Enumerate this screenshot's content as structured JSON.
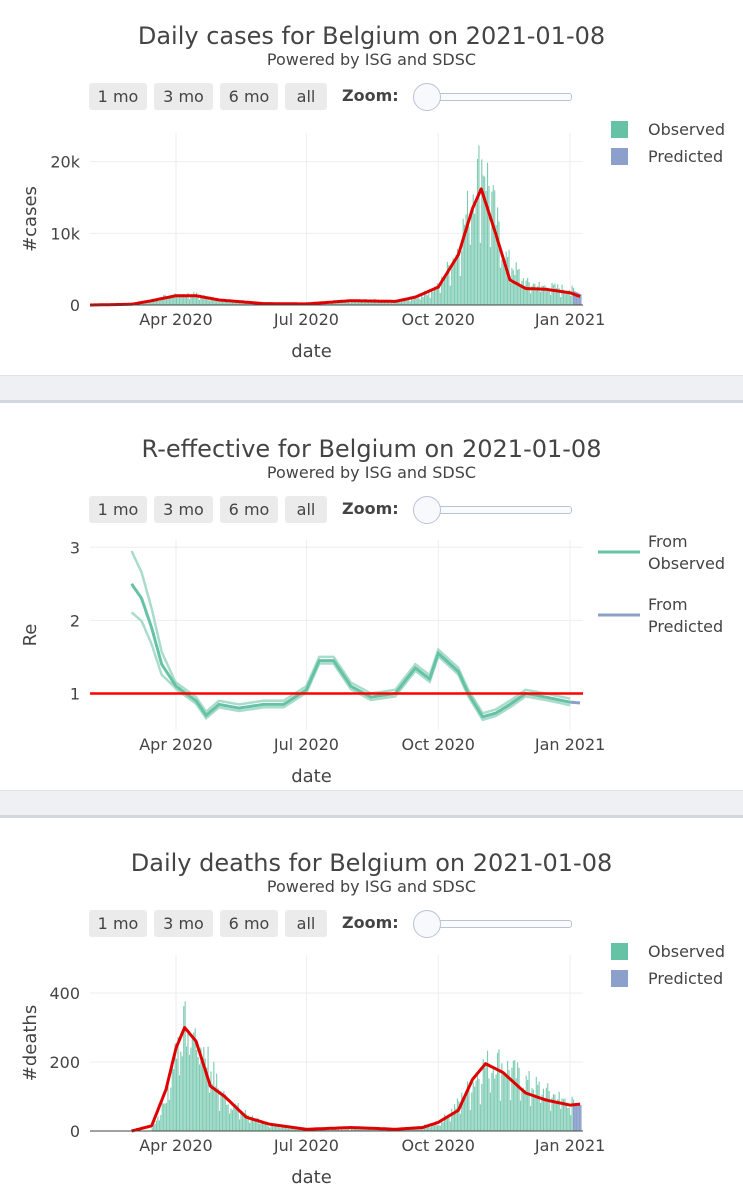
{
  "controls": {
    "buttons": [
      "1 mo",
      "3 mo",
      "6 mo",
      "all"
    ],
    "zoom_label": "Zoom:"
  },
  "x_ticks": [
    "Apr 2020",
    "Jul 2020",
    "Oct 2020",
    "Jan 2021"
  ],
  "chart_data": [
    {
      "type": "bar",
      "title": "Daily cases for Belgium on 2021-01-08",
      "subtitle": "Powered by ISG and SDSC",
      "xlabel": "date",
      "ylabel": "#cases",
      "ylim": [
        0,
        24000
      ],
      "y_ticks": [
        "0",
        "10k",
        "20k"
      ],
      "y_tick_values": [
        0,
        10000,
        20000
      ],
      "legend": {
        "placement": "top-right",
        "items": [
          "Observed",
          "Predicted"
        ]
      },
      "colors": {
        "observed": "#66c2a5",
        "predicted": "#8da0cb",
        "trend": "#e00000"
      },
      "series": [
        {
          "name": "Observed",
          "x": [
            "2020-03-01",
            "2020-03-15",
            "2020-04-01",
            "2020-04-15",
            "2020-05-01",
            "2020-06-01",
            "2020-07-01",
            "2020-08-01",
            "2020-08-15",
            "2020-09-01",
            "2020-09-15",
            "2020-10-01",
            "2020-10-15",
            "2020-10-25",
            "2020-11-01",
            "2020-11-15",
            "2020-12-01",
            "2020-12-15",
            "2021-01-01",
            "2021-01-08"
          ],
          "values": [
            200,
            700,
            1500,
            1400,
            700,
            200,
            150,
            600,
            700,
            500,
            1000,
            2500,
            8000,
            16000,
            20000,
            7000,
            3000,
            2500,
            2200,
            1500
          ]
        },
        {
          "name": "Trend",
          "x": [
            "2020-02-01",
            "2020-03-01",
            "2020-03-15",
            "2020-04-01",
            "2020-04-15",
            "2020-05-01",
            "2020-06-01",
            "2020-07-01",
            "2020-08-01",
            "2020-09-01",
            "2020-09-15",
            "2020-10-01",
            "2020-10-15",
            "2020-10-25",
            "2020-10-31",
            "2020-11-10",
            "2020-11-20",
            "2020-12-01",
            "2020-12-15",
            "2021-01-01",
            "2021-01-08"
          ],
          "values": [
            0,
            100,
            600,
            1300,
            1300,
            700,
            200,
            150,
            600,
            500,
            1100,
            2500,
            7000,
            13500,
            16200,
            10000,
            3500,
            2300,
            2200,
            1700,
            1200
          ]
        }
      ]
    },
    {
      "type": "line",
      "title": "R-effective for Belgium on 2021-01-08",
      "subtitle": "Powered by ISG and SDSC",
      "xlabel": "date",
      "ylabel": "Re",
      "ylim": [
        0.5,
        3.1
      ],
      "y_ticks": [
        "1",
        "2",
        "3"
      ],
      "y_tick_values": [
        1,
        2,
        3
      ],
      "reference_line": 1,
      "legend": {
        "placement": "top-right",
        "items": [
          [
            "From",
            "Observed"
          ],
          [
            "From",
            "Predicted"
          ]
        ]
      },
      "colors": {
        "observed": "#66c2a5",
        "predicted": "#8da0cb",
        "reference": "#ff0000"
      },
      "series": [
        {
          "name": "From Observed",
          "x": [
            "2020-03-01",
            "2020-03-08",
            "2020-03-15",
            "2020-03-22",
            "2020-04-01",
            "2020-04-08",
            "2020-04-15",
            "2020-04-22",
            "2020-05-01",
            "2020-05-15",
            "2020-06-01",
            "2020-06-15",
            "2020-07-01",
            "2020-07-10",
            "2020-07-20",
            "2020-08-01",
            "2020-08-15",
            "2020-09-01",
            "2020-09-15",
            "2020-09-25",
            "2020-10-01",
            "2020-10-15",
            "2020-10-22",
            "2020-11-01",
            "2020-11-10",
            "2020-11-20",
            "2020-12-01",
            "2020-12-15",
            "2021-01-01"
          ],
          "values": [
            2.5,
            2.3,
            1.9,
            1.4,
            1.1,
            1.0,
            0.9,
            0.7,
            0.85,
            0.8,
            0.85,
            0.85,
            1.05,
            1.45,
            1.45,
            1.1,
            0.95,
            1.0,
            1.35,
            1.2,
            1.55,
            1.3,
            1.0,
            0.68,
            0.73,
            0.85,
            1.0,
            0.95,
            0.88
          ]
        },
        {
          "name": "From Predicted",
          "x": [
            "2021-01-01",
            "2021-01-08"
          ],
          "values": [
            0.88,
            0.87
          ]
        }
      ]
    },
    {
      "type": "bar",
      "title": "Daily deaths for Belgium on 2021-01-08",
      "subtitle": "Powered by ISG and SDSC",
      "xlabel": "date",
      "ylabel": "#deaths",
      "ylim": [
        0,
        510
      ],
      "y_ticks": [
        "0",
        "200",
        "400"
      ],
      "y_tick_values": [
        0,
        200,
        400
      ],
      "legend": {
        "placement": "top-right",
        "items": [
          "Observed",
          "Predicted"
        ]
      },
      "colors": {
        "observed": "#66c2a5",
        "predicted": "#8da0cb",
        "trend": "#e00000"
      },
      "series": [
        {
          "name": "Observed",
          "x": [
            "2020-03-15",
            "2020-03-25",
            "2020-04-01",
            "2020-04-08",
            "2020-04-15",
            "2020-04-22",
            "2020-05-01",
            "2020-05-15",
            "2020-06-01",
            "2020-07-01",
            "2020-08-01",
            "2020-08-15",
            "2020-09-01",
            "2020-10-01",
            "2020-10-15",
            "2020-11-01",
            "2020-11-10",
            "2020-11-20",
            "2020-12-01",
            "2020-12-15",
            "2021-01-01",
            "2021-01-08"
          ],
          "values": [
            10,
            90,
            250,
            300,
            260,
            220,
            110,
            60,
            20,
            5,
            5,
            10,
            5,
            20,
            80,
            180,
            200,
            170,
            140,
            110,
            80,
            75
          ]
        },
        {
          "name": "Trend",
          "x": [
            "2020-03-01",
            "2020-03-15",
            "2020-03-25",
            "2020-04-01",
            "2020-04-07",
            "2020-04-15",
            "2020-04-25",
            "2020-05-05",
            "2020-05-20",
            "2020-06-05",
            "2020-07-01",
            "2020-08-01",
            "2020-08-15",
            "2020-09-01",
            "2020-09-20",
            "2020-10-01",
            "2020-10-15",
            "2020-10-25",
            "2020-11-03",
            "2020-11-15",
            "2020-12-01",
            "2020-12-15",
            "2021-01-01",
            "2021-01-08"
          ],
          "values": [
            0,
            15,
            120,
            240,
            300,
            260,
            130,
            100,
            40,
            20,
            5,
            10,
            8,
            5,
            10,
            25,
            60,
            150,
            195,
            170,
            110,
            90,
            75,
            78
          ]
        }
      ]
    }
  ]
}
